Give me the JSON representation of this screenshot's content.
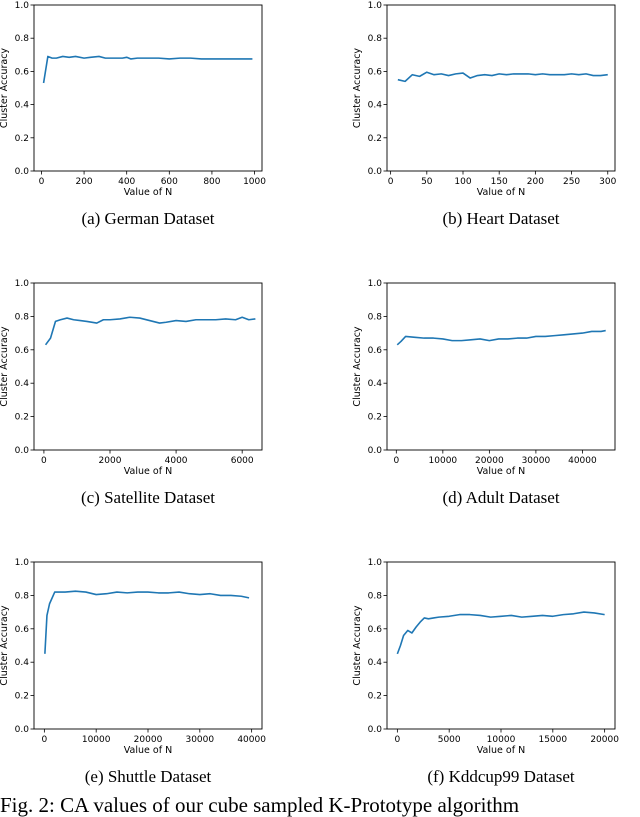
{
  "caption_text": "Fig. 2: CA values of our cube sampled K-Prototype algorithm",
  "chart_data": [
    {
      "type": "line",
      "caption": "(a) German Dataset",
      "xlabel": "Value of N",
      "ylabel": "Cluster Accuracy",
      "xlim": [
        -35,
        1035
      ],
      "ylim": [
        0,
        1.0
      ],
      "xticks": [
        0,
        200,
        400,
        600,
        800,
        1000
      ],
      "yticks": [
        0.0,
        0.2,
        0.4,
        0.6,
        0.8,
        1.0
      ],
      "x": [
        10,
        30,
        50,
        70,
        100,
        130,
        160,
        200,
        230,
        270,
        300,
        350,
        380,
        400,
        420,
        450,
        500,
        550,
        600,
        650,
        700,
        750,
        800,
        850,
        900,
        950,
        990
      ],
      "y": [
        0.53,
        0.69,
        0.68,
        0.68,
        0.69,
        0.685,
        0.69,
        0.68,
        0.685,
        0.69,
        0.68,
        0.68,
        0.68,
        0.685,
        0.675,
        0.68,
        0.68,
        0.68,
        0.675,
        0.68,
        0.68,
        0.675,
        0.675,
        0.675,
        0.675,
        0.675,
        0.675
      ]
    },
    {
      "type": "line",
      "caption": "(b) Heart Dataset",
      "xlabel": "Value of N",
      "ylabel": "Cluster Accuracy",
      "xlim": [
        -5,
        310
      ],
      "ylim": [
        0,
        1.0
      ],
      "xticks": [
        0,
        50,
        100,
        150,
        200,
        250,
        300
      ],
      "yticks": [
        0.0,
        0.2,
        0.4,
        0.6,
        0.8,
        1.0
      ],
      "x": [
        10,
        20,
        30,
        40,
        50,
        60,
        70,
        80,
        90,
        100,
        110,
        120,
        130,
        140,
        150,
        160,
        170,
        180,
        190,
        200,
        210,
        220,
        230,
        240,
        250,
        260,
        270,
        280,
        290,
        300
      ],
      "y": [
        0.55,
        0.54,
        0.58,
        0.57,
        0.595,
        0.58,
        0.585,
        0.575,
        0.585,
        0.59,
        0.56,
        0.575,
        0.58,
        0.575,
        0.585,
        0.58,
        0.585,
        0.585,
        0.585,
        0.58,
        0.585,
        0.58,
        0.58,
        0.58,
        0.585,
        0.58,
        0.585,
        0.575,
        0.575,
        0.58
      ]
    },
    {
      "type": "line",
      "caption": "(c) Satellite Dataset",
      "xlabel": "Value of N",
      "ylabel": "Cluster Accuracy",
      "xlim": [
        -300,
        6600
      ],
      "ylim": [
        0,
        1.0
      ],
      "xticks": [
        0,
        2000,
        4000,
        6000
      ],
      "yticks": [
        0.0,
        0.2,
        0.4,
        0.6,
        0.8,
        1.0
      ],
      "x": [
        50,
        200,
        350,
        500,
        700,
        900,
        1100,
        1300,
        1600,
        1800,
        2000,
        2300,
        2600,
        2900,
        3200,
        3500,
        3700,
        4000,
        4300,
        4600,
        4900,
        5200,
        5500,
        5800,
        6000,
        6200,
        6400
      ],
      "y": [
        0.63,
        0.67,
        0.77,
        0.78,
        0.79,
        0.78,
        0.775,
        0.77,
        0.76,
        0.78,
        0.78,
        0.785,
        0.795,
        0.79,
        0.775,
        0.76,
        0.765,
        0.775,
        0.77,
        0.78,
        0.78,
        0.78,
        0.785,
        0.78,
        0.795,
        0.78,
        0.785
      ]
    },
    {
      "type": "line",
      "caption": "(d) Adult Dataset",
      "xlabel": "Value of N",
      "ylabel": "Cluster Accuracy",
      "xlim": [
        -2000,
        47000
      ],
      "ylim": [
        0,
        1.0
      ],
      "xticks": [
        0,
        10000,
        20000,
        30000,
        40000
      ],
      "yticks": [
        0.0,
        0.2,
        0.4,
        0.6,
        0.8,
        1.0
      ],
      "x": [
        200,
        1000,
        2000,
        4000,
        6000,
        8000,
        10000,
        12000,
        14000,
        16000,
        18000,
        20000,
        22000,
        24000,
        26000,
        28000,
        30000,
        32000,
        34000,
        36000,
        38000,
        40000,
        42000,
        44000,
        45000
      ],
      "y": [
        0.63,
        0.65,
        0.68,
        0.675,
        0.67,
        0.67,
        0.665,
        0.655,
        0.655,
        0.66,
        0.665,
        0.655,
        0.665,
        0.665,
        0.67,
        0.67,
        0.68,
        0.68,
        0.685,
        0.69,
        0.695,
        0.7,
        0.71,
        0.71,
        0.715
      ]
    },
    {
      "type": "line",
      "caption": "(e) Shuttle Dataset",
      "xlabel": "Value of N",
      "ylabel": "Cluster Accuracy",
      "xlim": [
        -2000,
        42000
      ],
      "ylim": [
        0,
        1.0
      ],
      "xticks": [
        0,
        10000,
        20000,
        30000,
        40000
      ],
      "yticks": [
        0.0,
        0.2,
        0.4,
        0.6,
        0.8,
        1.0
      ],
      "x": [
        100,
        500,
        1000,
        2000,
        4000,
        6000,
        8000,
        10000,
        12000,
        14000,
        16000,
        18000,
        20000,
        22000,
        24000,
        26000,
        28000,
        30000,
        32000,
        34000,
        36000,
        38000,
        39500
      ],
      "y": [
        0.45,
        0.68,
        0.75,
        0.82,
        0.82,
        0.825,
        0.82,
        0.805,
        0.81,
        0.82,
        0.815,
        0.82,
        0.82,
        0.815,
        0.815,
        0.82,
        0.81,
        0.805,
        0.81,
        0.8,
        0.8,
        0.795,
        0.785
      ]
    },
    {
      "type": "line",
      "caption": "(f) Kddcup99 Dataset",
      "xlabel": "Value of N",
      "ylabel": "Cluster Accuracy",
      "xlim": [
        -1000,
        21000
      ],
      "ylim": [
        0,
        1.0
      ],
      "xticks": [
        0,
        5000,
        10000,
        15000,
        20000
      ],
      "yticks": [
        0.0,
        0.2,
        0.4,
        0.6,
        0.8,
        1.0
      ],
      "x": [
        0,
        300,
        600,
        1000,
        1400,
        1800,
        2200,
        2600,
        3000,
        3500,
        4000,
        5000,
        6000,
        7000,
        8000,
        9000,
        10000,
        11000,
        12000,
        13000,
        14000,
        15000,
        16000,
        17000,
        18000,
        19000,
        20000
      ],
      "y": [
        0.45,
        0.5,
        0.56,
        0.59,
        0.575,
        0.61,
        0.64,
        0.665,
        0.66,
        0.665,
        0.67,
        0.675,
        0.685,
        0.685,
        0.68,
        0.67,
        0.675,
        0.68,
        0.67,
        0.675,
        0.68,
        0.675,
        0.685,
        0.69,
        0.7,
        0.695,
        0.685
      ]
    }
  ]
}
